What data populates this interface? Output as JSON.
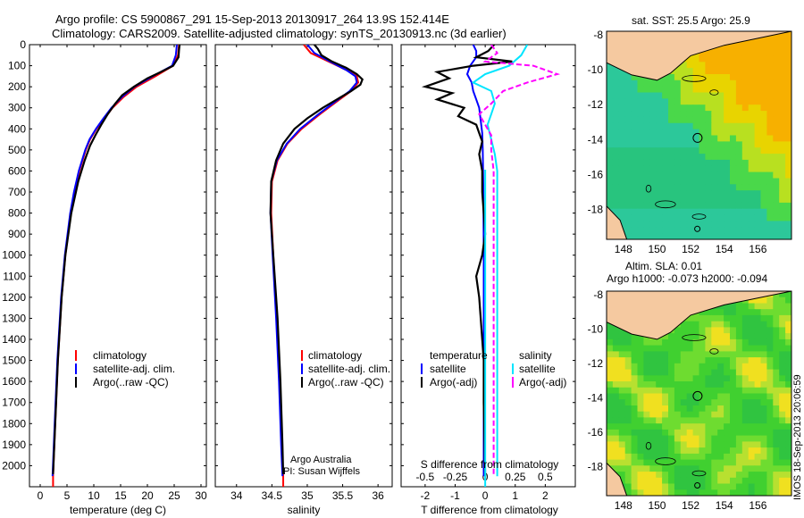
{
  "header": {
    "line1": "Argo profile: CS 5900867_291 15-Sep-2013 20130917_264 13.9S 152.414E",
    "line2": "Climatology: CARS2009. Satellite-adjusted climatology: synTS_20130913.nc (3d earlier)"
  },
  "colors": {
    "climatology": "#ff0000",
    "satellite": "#0000ff",
    "argo": "#000000",
    "sat_salinity": "#00e5ff",
    "argo_salinity": "#ff00ff",
    "land": "#f5c9a0"
  },
  "chart_data": [
    {
      "id": "temperature",
      "type": "line",
      "xlabel": "temperature (deg C)",
      "xlim": [
        -2,
        31
      ],
      "xticks": [
        0,
        5,
        10,
        15,
        20,
        25,
        30
      ],
      "ylim": [
        2100,
        0
      ],
      "yticks": [
        0,
        100,
        200,
        300,
        400,
        500,
        600,
        700,
        800,
        900,
        1000,
        1100,
        1200,
        1300,
        1400,
        1500,
        1600,
        1700,
        1800,
        1900,
        2000
      ],
      "legend": [
        "climatology",
        "satellite-adj. clim.",
        "Argo(..raw -QC)"
      ],
      "series": [
        {
          "name": "climatology",
          "color": "#ff0000",
          "depth": [
            0,
            50,
            100,
            150,
            200,
            250,
            300,
            350,
            400,
            450,
            500,
            600,
            700,
            800,
            1000,
            1200,
            1500,
            1800,
            2050
          ],
          "values": [
            25.9,
            25.7,
            24.8,
            21.5,
            18.0,
            15.5,
            13.5,
            12.0,
            10.5,
            9.3,
            8.5,
            7.3,
            6.4,
            5.7,
            4.7,
            4.0,
            3.3,
            2.8,
            2.4
          ]
        },
        {
          "name": "satellite-adj. clim.",
          "color": "#0000ff",
          "depth": [
            0,
            50,
            100,
            150,
            200,
            250,
            300,
            350,
            400,
            450,
            500,
            600,
            700,
            800,
            1000,
            1200,
            1500,
            1800,
            2050
          ],
          "values": [
            25.5,
            25.3,
            24.6,
            21.0,
            17.6,
            15.2,
            13.3,
            11.8,
            10.4,
            9.2,
            8.4,
            7.2,
            6.3,
            5.6,
            4.6,
            3.9,
            3.2,
            2.7,
            2.3
          ]
        },
        {
          "name": "Argo(..raw -QC)",
          "color": "#000000",
          "depth": [
            0,
            25,
            60,
            100,
            130,
            160,
            200,
            240,
            280,
            330,
            380,
            430,
            480,
            550,
            650,
            800,
            1000,
            1200,
            1500,
            1800,
            2040
          ],
          "values": [
            26.0,
            25.9,
            25.8,
            24.8,
            22.5,
            20.0,
            17.5,
            15.3,
            14.0,
            12.6,
            11.4,
            10.3,
            9.3,
            8.3,
            7.1,
            5.8,
            4.7,
            4.0,
            3.3,
            2.8,
            2.4
          ]
        }
      ]
    },
    {
      "id": "salinity",
      "type": "line",
      "xlabel": "salinity",
      "xlim": [
        33.7,
        36.2
      ],
      "xticks": [
        34,
        34.5,
        35,
        35.5,
        36
      ],
      "ylim": [
        2100,
        0
      ],
      "legend": [
        "climatology",
        "satellite-adj. clim.",
        "Argo(..raw -QC)"
      ],
      "annotation": [
        "Argo Australia",
        "PI: Susan Wijffels"
      ],
      "series": [
        {
          "name": "climatology",
          "color": "#ff0000",
          "depth": [
            0,
            40,
            80,
            120,
            150,
            180,
            220,
            270,
            330,
            400,
            470,
            550,
            650,
            800,
            1000,
            1300,
            1600,
            1900,
            2050
          ],
          "values": [
            34.95,
            35.05,
            35.3,
            35.55,
            35.7,
            35.72,
            35.62,
            35.42,
            35.18,
            34.92,
            34.72,
            34.58,
            34.5,
            34.49,
            34.52,
            34.57,
            34.61,
            34.64,
            34.66
          ]
        },
        {
          "name": "satellite-adj. clim.",
          "color": "#0000ff",
          "depth": [
            0,
            40,
            80,
            120,
            150,
            180,
            220,
            270,
            330,
            400,
            470,
            550,
            650,
            800,
            1000,
            1300,
            1600,
            1900,
            2050
          ],
          "values": [
            35.0,
            35.1,
            35.32,
            35.55,
            35.68,
            35.7,
            35.6,
            35.4,
            35.16,
            34.9,
            34.71,
            34.57,
            34.49,
            34.48,
            34.51,
            34.56,
            34.6,
            34.63,
            34.65
          ]
        },
        {
          "name": "Argo(..raw -QC)",
          "color": "#000000",
          "depth": [
            0,
            20,
            50,
            80,
            110,
            140,
            165,
            190,
            220,
            260,
            300,
            350,
            400,
            470,
            550,
            650,
            800,
            1000,
            1300,
            1600,
            1900,
            2040
          ],
          "values": [
            35.1,
            35.15,
            35.2,
            35.35,
            35.55,
            35.7,
            35.78,
            35.75,
            35.62,
            35.42,
            35.22,
            35.0,
            34.82,
            34.66,
            34.56,
            34.49,
            34.48,
            34.52,
            34.58,
            34.62,
            34.65,
            34.66
          ]
        }
      ]
    },
    {
      "id": "differences",
      "type": "line",
      "xlabel": "T difference from climatology",
      "xlabel_top": "S difference from climatology",
      "xlim": [
        -2.8,
        3.0
      ],
      "xticks": [
        -2,
        -1,
        0,
        1,
        2
      ],
      "xticks_s": [
        -0.5,
        -0.25,
        0,
        0.25,
        0.5
      ],
      "ylim": [
        2100,
        0
      ],
      "legend_t": [
        "temperature",
        "satellite",
        "Argo(-adj)"
      ],
      "legend_s": [
        "salinity",
        "satellite",
        "Argo(-adj)"
      ],
      "series": [
        {
          "name": "temperature satellite",
          "color": "#0000ff",
          "depth": [
            0,
            30,
            60,
            100,
            140,
            180,
            220,
            260,
            300,
            360,
            420,
            500,
            700,
            1000,
            1500,
            2050
          ],
          "values": [
            -0.4,
            -0.3,
            -0.3,
            -0.5,
            -0.6,
            -0.45,
            -0.4,
            -0.3,
            -0.2,
            -0.15,
            -0.1,
            -0.08,
            -0.06,
            -0.05,
            -0.05,
            -0.05
          ]
        },
        {
          "name": "temperature Argo(-adj)",
          "color": "#000000",
          "depth": [
            0,
            30,
            60,
            80,
            100,
            130,
            160,
            200,
            230,
            260,
            300,
            340,
            380,
            420,
            460,
            520,
            600,
            700,
            800,
            900,
            1000,
            1100,
            1200,
            1300,
            1400,
            1500,
            1700,
            1900,
            2050
          ],
          "values": [
            0.3,
            0.1,
            -0.3,
            0.9,
            -0.4,
            -1.6,
            -1.2,
            -2.0,
            -1.1,
            -1.6,
            -0.7,
            -0.9,
            -0.3,
            -0.2,
            -0.1,
            -0.2,
            -0.1,
            -0.1,
            -0.05,
            0.0,
            -0.1,
            -0.3,
            -0.2,
            -0.15,
            -0.1,
            -0.05,
            -0.05,
            -0.02,
            0.0
          ]
        },
        {
          "name": "salinity satellite",
          "color": "#00e5ff",
          "depth": [
            0,
            50,
            100,
            140,
            180,
            220,
            280,
            330,
            380,
            450,
            520,
            600,
            800,
            1000,
            1500,
            2050
          ],
          "values": [
            0.35,
            0.3,
            0.2,
            0.0,
            -0.1,
            0.05,
            0.08,
            0.05,
            0.02,
            0.05,
            0.08,
            0.1,
            0.1,
            0.1,
            0.1,
            0.1
          ]
        },
        {
          "name": "salinity Argo(-adj)",
          "color": "#ff00ff",
          "depth": [
            0,
            40,
            80,
            100,
            140,
            180,
            220,
            280,
            330,
            380,
            430,
            500,
            600,
            800,
            1000,
            1500,
            2050
          ],
          "values": [
            0.05,
            0.1,
            0.0,
            0.4,
            0.6,
            0.35,
            0.15,
            0.05,
            -0.05,
            0.0,
            0.05,
            0.05,
            0.07,
            0.07,
            0.07,
            0.07,
            0.07
          ]
        }
      ]
    },
    {
      "id": "sst_map",
      "type": "heatmap",
      "title": "sat. SST: 25.5 Argo: 25.9",
      "xticks": [
        148,
        150,
        152,
        154,
        156
      ],
      "yticks": [
        -8,
        -10,
        -12,
        -14,
        -16,
        -18
      ],
      "xlim": [
        147,
        158
      ],
      "ylim": [
        -19.7,
        -7.8
      ],
      "profile": {
        "lon": 152.414,
        "lat": -13.9
      }
    },
    {
      "id": "sla_map",
      "type": "heatmap",
      "title1": "Altim. SLA: 0.01",
      "title2": "Argo h1000: -0.073 h2000: -0.094",
      "xticks": [
        148,
        150,
        152,
        154,
        156
      ],
      "yticks": [
        -8,
        -10,
        -12,
        -14,
        -16,
        -18
      ],
      "xlim": [
        147,
        158
      ],
      "ylim": [
        -19.7,
        -7.8
      ],
      "profile": {
        "lon": 152.414,
        "lat": -13.9
      }
    }
  ],
  "timestamp": "IMOS 18-Sep-2013 20:06:59"
}
